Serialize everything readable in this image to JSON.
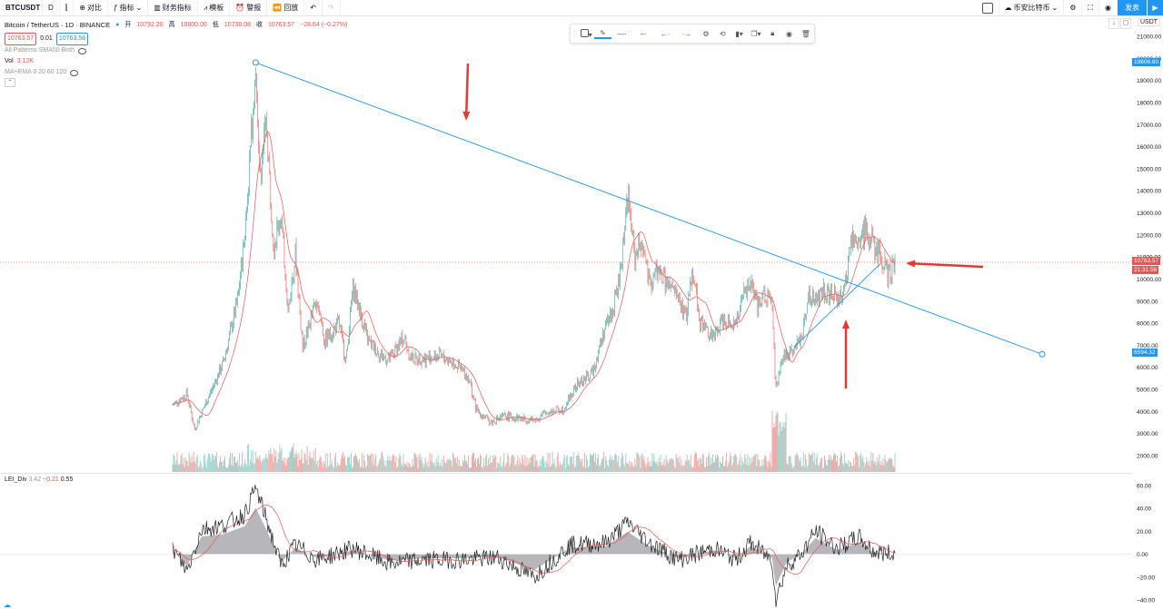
{
  "toolbar": {
    "symbol": "BTCUSDT",
    "interval": "D",
    "compare": "对比",
    "indicators": "指标",
    "financials": "财务指标",
    "templates": "模板",
    "alert": "警报",
    "replay": "回放",
    "exchange": "币安比特币",
    "publish": "发表"
  },
  "legend": {
    "title": "Bitcoin / TetherUS · 1D · BINANCE",
    "open_label": "开",
    "open": "10792.20",
    "high_label": "高",
    "high": "10800.00",
    "low_label": "低",
    "low": "10738.08",
    "close_label": "收",
    "close": "10763.57",
    "change": "−28.64 (−0.27%)",
    "bid": "10763.57",
    "spread": "0.01",
    "ask": "10763.58",
    "patterns": "All Patterns SMA50 Both",
    "vol_label": "Vol",
    "vol": "3.12K",
    "ma_label": "MA+EMA 0 20 60 120"
  },
  "sub_legend": {
    "name": "LEI_Div",
    "v1": "3.42",
    "v2": "−0.21",
    "v3": "0.55"
  },
  "axis_currency": "USDT",
  "price_labels": {
    "top_line": "19806.60",
    "current": "10763.57",
    "countdown": "21:31:56",
    "bottom_line": "6594.32"
  },
  "colors": {
    "up": "#26a69a",
    "down": "#ef5350",
    "line": "#2196f3",
    "arrow": "#e53935",
    "ma": "#ef5350"
  },
  "chart_data": {
    "type": "line",
    "title": "Bitcoin / TetherUS · 1D · BINANCE",
    "main_axis": {
      "ticks": [
        "21000.00",
        "20000.00",
        "19000.00",
        "18000.00",
        "17000.00",
        "16000.00",
        "15000.00",
        "14000.00",
        "13000.00",
        "12000.00",
        "11000.00",
        "10000.00",
        "9000.00",
        "8000.00",
        "7000.00",
        "6000.00",
        "5000.00",
        "4000.00",
        "3000.00",
        "2000.00"
      ],
      "ylim": [
        1600,
        21500
      ]
    },
    "sub_axis": {
      "ticks": [
        "60.00",
        "40.00",
        "20.00",
        "0.00",
        "−20.00",
        "−40.00"
      ],
      "ylim": [
        -42,
        63
      ]
    },
    "price_series": {
      "name": "BTCUSDT",
      "points": [
        [
          0,
          4300
        ],
        [
          0.02,
          4800
        ],
        [
          0.03,
          3200
        ],
        [
          0.05,
          4700
        ],
        [
          0.07,
          6200
        ],
        [
          0.09,
          9000
        ],
        [
          0.1,
          12000
        ],
        [
          0.11,
          17000
        ],
        [
          0.115,
          19800
        ],
        [
          0.12,
          14500
        ],
        [
          0.13,
          17000
        ],
        [
          0.14,
          11500
        ],
        [
          0.15,
          13000
        ],
        [
          0.16,
          8500
        ],
        [
          0.17,
          11200
        ],
        [
          0.18,
          6900
        ],
        [
          0.2,
          9200
        ],
        [
          0.21,
          7200
        ],
        [
          0.23,
          8000
        ],
        [
          0.24,
          6300
        ],
        [
          0.25,
          9700
        ],
        [
          0.27,
          7200
        ],
        [
          0.29,
          6500
        ],
        [
          0.3,
          6300
        ],
        [
          0.32,
          7400
        ],
        [
          0.33,
          6400
        ],
        [
          0.35,
          6400
        ],
        [
          0.37,
          6500
        ],
        [
          0.39,
          6200
        ],
        [
          0.41,
          5500
        ],
        [
          0.42,
          4100
        ],
        [
          0.44,
          3500
        ],
        [
          0.46,
          3800
        ],
        [
          0.48,
          3700
        ],
        [
          0.5,
          3600
        ],
        [
          0.52,
          4000
        ],
        [
          0.54,
          4100
        ],
        [
          0.56,
          5200
        ],
        [
          0.58,
          5700
        ],
        [
          0.6,
          7900
        ],
        [
          0.61,
          8700
        ],
        [
          0.62,
          10200
        ],
        [
          0.63,
          13900
        ],
        [
          0.64,
          11000
        ],
        [
          0.65,
          11800
        ],
        [
          0.66,
          9600
        ],
        [
          0.67,
          10400
        ],
        [
          0.69,
          9500
        ],
        [
          0.7,
          9200
        ],
        [
          0.71,
          8200
        ],
        [
          0.72,
          10500
        ],
        [
          0.73,
          8100
        ],
        [
          0.75,
          7300
        ],
        [
          0.76,
          8200
        ],
        [
          0.78,
          8000
        ],
        [
          0.79,
          9200
        ],
        [
          0.8,
          9900
        ],
        [
          0.81,
          8600
        ],
        [
          0.82,
          9400
        ],
        [
          0.83,
          8800
        ],
        [
          0.835,
          5000
        ],
        [
          0.845,
          6500
        ],
        [
          0.86,
          6900
        ],
        [
          0.87,
          7300
        ],
        [
          0.88,
          9300
        ],
        [
          0.89,
          9000
        ],
        [
          0.9,
          9600
        ],
        [
          0.91,
          9300
        ],
        [
          0.92,
          9100
        ],
        [
          0.93,
          9400
        ],
        [
          0.94,
          11800
        ],
        [
          0.95,
          11600
        ],
        [
          0.96,
          12400
        ],
        [
          0.97,
          11500
        ],
        [
          0.98,
          11000
        ],
        [
          0.99,
          10200
        ],
        [
          1.0,
          10700
        ]
      ]
    },
    "volume": {
      "name": "Vol",
      "note": "volume bars"
    },
    "oscillator": {
      "name": "LEI_Div",
      "points": [
        [
          0,
          5
        ],
        [
          0.02,
          -15
        ],
        [
          0.04,
          22
        ],
        [
          0.07,
          25
        ],
        [
          0.1,
          35
        ],
        [
          0.115,
          58
        ],
        [
          0.13,
          30
        ],
        [
          0.15,
          -10
        ],
        [
          0.17,
          8
        ],
        [
          0.2,
          -5
        ],
        [
          0.25,
          5
        ],
        [
          0.3,
          -8
        ],
        [
          0.35,
          -5
        ],
        [
          0.4,
          -5
        ],
        [
          0.45,
          -3
        ],
        [
          0.5,
          -20
        ],
        [
          0.55,
          8
        ],
        [
          0.6,
          10
        ],
        [
          0.63,
          28
        ],
        [
          0.66,
          10
        ],
        [
          0.7,
          -5
        ],
        [
          0.75,
          5
        ],
        [
          0.78,
          -5
        ],
        [
          0.8,
          10
        ],
        [
          0.83,
          -5
        ],
        [
          0.835,
          -40
        ],
        [
          0.85,
          -10
        ],
        [
          0.87,
          0
        ],
        [
          0.89,
          20
        ],
        [
          0.92,
          5
        ],
        [
          0.95,
          15
        ],
        [
          0.97,
          2
        ],
        [
          1.0,
          0
        ]
      ]
    },
    "trendlines": [
      {
        "from": [
          0.115,
          19806.6
        ],
        "to": [
          1.2,
          6594.32
        ]
      },
      {
        "from": [
          0.86,
          6900
        ],
        "to": [
          0.98,
          10700
        ]
      }
    ],
    "annotations": [
      "down arrow",
      "left arrow",
      "up arrow"
    ]
  }
}
